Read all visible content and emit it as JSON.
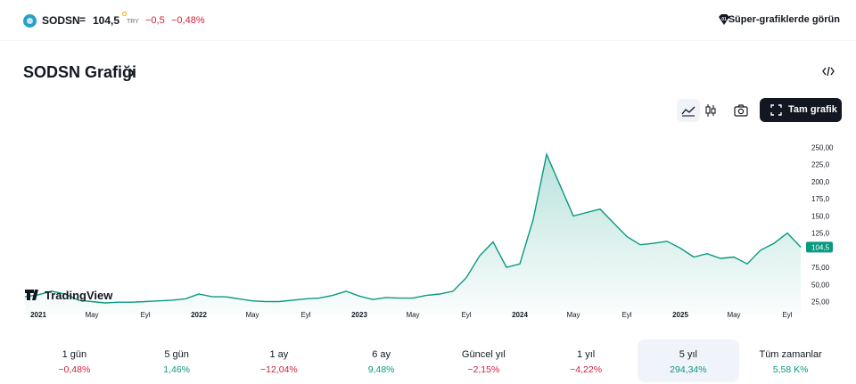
{
  "header": {
    "symbol": "SODSN",
    "separator": "=",
    "price": "104,5",
    "currency": "TRY",
    "change": "−0,5",
    "change_percent": "−0,48%",
    "super_charts_label": "Süper-grafiklerde görün"
  },
  "section": {
    "title": "SODSN Grafiği",
    "chevron": "›",
    "embed_icon": "code-icon"
  },
  "toolbar": {
    "line_icon": "area-chart-icon",
    "candle_icon": "candlestick-icon",
    "camera_icon": "camera-icon",
    "full_chart_label": "Tam grafik"
  },
  "chart_data": {
    "type": "area",
    "ylim": [
      10,
      265
    ],
    "y_ticks": [
      "250,00",
      "225,0",
      "200,0",
      "175,0",
      "150,0",
      "125,0",
      "104,5",
      "75,00",
      "50,00",
      "25,00"
    ],
    "x_ticks": [
      "2021",
      "May",
      "Eyl",
      "2022",
      "May",
      "Eyl",
      "2023",
      "May",
      "Eyl",
      "2024",
      "May",
      "Eyl",
      "2025",
      "May",
      "Eyl"
    ],
    "last_value_label": "104,5",
    "watermark": "TradingView",
    "colors": {
      "line": "#089981",
      "fill": "#089981",
      "last_badge": "#089981"
    },
    "series": [
      {
        "x": [
          "2020-12",
          "2021-01",
          "2021-02",
          "2021-03",
          "2021-04",
          "2021-05",
          "2021-06",
          "2021-07",
          "2021-08",
          "2021-09",
          "2021-10",
          "2021-11",
          "2021-12",
          "2022-01",
          "2022-02",
          "2022-03",
          "2022-04",
          "2022-05",
          "2022-06",
          "2022-07",
          "2022-08",
          "2022-09",
          "2022-10",
          "2022-11",
          "2022-12",
          "2023-01",
          "2023-02",
          "2023-03",
          "2023-04",
          "2023-05",
          "2023-06",
          "2023-07",
          "2023-08",
          "2023-09",
          "2023-10",
          "2023-11",
          "2023-12",
          "2024-01",
          "2024-02",
          "2024-03",
          "2024-04",
          "2024-05",
          "2024-06",
          "2024-07",
          "2024-08",
          "2024-09",
          "2024-10",
          "2024-11",
          "2024-12",
          "2025-01",
          "2025-02",
          "2025-03",
          "2025-04",
          "2025-05",
          "2025-06",
          "2025-07",
          "2025-08",
          "2025-09",
          "2025-10"
        ],
        "values": [
          32,
          35,
          40,
          36,
          27,
          25,
          23,
          24,
          24,
          25,
          26,
          27,
          29,
          36,
          32,
          32,
          29,
          26,
          25,
          25,
          27,
          29,
          30,
          34,
          40,
          33,
          28,
          31,
          30,
          30,
          34,
          36,
          40,
          60,
          92,
          112,
          75,
          80,
          145,
          240,
          195,
          150,
          155,
          160,
          140,
          120,
          108,
          110,
          113,
          103,
          90,
          95,
          88,
          90,
          80,
          100,
          110,
          125,
          104.5
        ]
      }
    ]
  },
  "periods": [
    {
      "label": "1 gün",
      "value": "−0,48%",
      "sign": "neg"
    },
    {
      "label": "5 gün",
      "value": "1,46%",
      "sign": "pos"
    },
    {
      "label": "1 ay",
      "value": "−12,04%",
      "sign": "neg"
    },
    {
      "label": "6 ay",
      "value": "9,48%",
      "sign": "pos"
    },
    {
      "label": "Güncel yıl",
      "value": "−2,15%",
      "sign": "neg"
    },
    {
      "label": "1 yıl",
      "value": "−4,22%",
      "sign": "neg"
    },
    {
      "label": "5 yıl",
      "value": "294,34%",
      "sign": "pos",
      "active": true
    },
    {
      "label": "Tüm zamanlar",
      "value": "5,58 K%",
      "sign": "pos"
    }
  ]
}
